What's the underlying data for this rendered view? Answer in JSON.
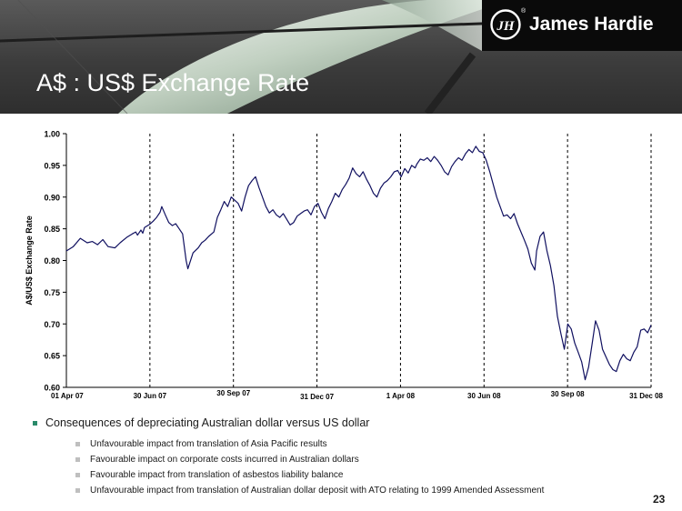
{
  "header": {
    "logo_text": "James Hardie",
    "logo_mark": "JH",
    "logo_registered": "®",
    "title": "A$ : US$ Exchange Rate"
  },
  "chart_data": {
    "type": "line",
    "ylabel": "A$/US$ Exchange Rate",
    "ylim": [
      0.6,
      1.0
    ],
    "yticks": [
      "0.60",
      "0.65",
      "0.70",
      "0.75",
      "0.80",
      "0.85",
      "0.90",
      "0.95",
      "1.00"
    ],
    "date_labels": [
      "01 Apr 07",
      "30 Jun 07",
      "30 Sep 07",
      "31 Dec 07",
      "1 Apr 08",
      "30 Jun 08",
      "30 Sep 08",
      "31 Dec 08"
    ],
    "color": "#101060",
    "series": [
      {
        "x": [
          0,
          8,
          16,
          24,
          30,
          36,
          42,
          48,
          56,
          62,
          70,
          76,
          80,
          82,
          86,
          88,
          90,
          96,
          100,
          104,
          108,
          110,
          114,
          118,
          122,
          126,
          130,
          134,
          138,
          140,
          146,
          152,
          156,
          160,
          164,
          170,
          174,
          178,
          182,
          186,
          190,
          194,
          198,
          202,
          206,
          210,
          214,
          218,
          222,
          226,
          230,
          234,
          238,
          242,
          246,
          250,
          254,
          258,
          262,
          266,
          270,
          274,
          278,
          282,
          286,
          290,
          294,
          298,
          302,
          306,
          310,
          314,
          318,
          322,
          326,
          330,
          334,
          338,
          342,
          346,
          350,
          354,
          358,
          362,
          366,
          370,
          374,
          378,
          382,
          386,
          390,
          394,
          398,
          402,
          404,
          408,
          412,
          416,
          420,
          424,
          428,
          432,
          436,
          440,
          444,
          448,
          452,
          456,
          460,
          464,
          468,
          472,
          476,
          480,
          484,
          488,
          492,
          496,
          500,
          504,
          508,
          512,
          516,
          520,
          524,
          528,
          532,
          536,
          540,
          542,
          546,
          550,
          554,
          558,
          562,
          566,
          570,
          574,
          578,
          582,
          586,
          590,
          594,
          598,
          602,
          606,
          610,
          614,
          618,
          622,
          626,
          630,
          634,
          638,
          642,
          646,
          650,
          654,
          658,
          662,
          666,
          670,
          674
        ],
        "y": [
          0.815,
          0.822,
          0.835,
          0.828,
          0.83,
          0.825,
          0.833,
          0.822,
          0.82,
          0.828,
          0.837,
          0.842,
          0.845,
          0.84,
          0.848,
          0.843,
          0.852,
          0.857,
          0.862,
          0.868,
          0.876,
          0.885,
          0.872,
          0.86,
          0.855,
          0.858,
          0.85,
          0.842,
          0.8,
          0.787,
          0.812,
          0.82,
          0.828,
          0.832,
          0.838,
          0.845,
          0.868,
          0.88,
          0.893,
          0.885,
          0.9,
          0.895,
          0.89,
          0.878,
          0.9,
          0.918,
          0.926,
          0.932,
          0.915,
          0.9,
          0.885,
          0.875,
          0.88,
          0.872,
          0.868,
          0.874,
          0.865,
          0.856,
          0.86,
          0.87,
          0.874,
          0.878,
          0.88,
          0.872,
          0.885,
          0.89,
          0.876,
          0.866,
          0.882,
          0.893,
          0.906,
          0.9,
          0.912,
          0.92,
          0.93,
          0.946,
          0.937,
          0.932,
          0.94,
          0.928,
          0.918,
          0.906,
          0.9,
          0.914,
          0.922,
          0.926,
          0.932,
          0.94,
          0.942,
          0.932,
          0.945,
          0.938,
          0.95,
          0.946,
          0.952,
          0.96,
          0.958,
          0.962,
          0.956,
          0.964,
          0.958,
          0.95,
          0.94,
          0.935,
          0.948,
          0.956,
          0.962,
          0.958,
          0.968,
          0.975,
          0.97,
          0.98,
          0.972,
          0.97,
          0.958,
          0.94,
          0.92,
          0.9,
          0.885,
          0.87,
          0.872,
          0.866,
          0.874,
          0.858,
          0.845,
          0.832,
          0.818,
          0.796,
          0.785,
          0.815,
          0.838,
          0.845,
          0.815,
          0.792,
          0.76,
          0.712,
          0.685,
          0.66,
          0.7,
          0.692,
          0.67,
          0.655,
          0.64,
          0.612,
          0.632,
          0.668,
          0.705,
          0.69,
          0.66,
          0.648,
          0.636,
          0.628,
          0.625,
          0.642,
          0.652,
          0.645,
          0.642,
          0.655,
          0.664,
          0.69,
          0.692,
          0.686,
          0.698
        ]
      }
    ]
  },
  "bullets": {
    "main": "Consequences of depreciating Australian dollar versus US dollar",
    "subs": [
      "Unfavourable impact from translation of Asia Pacific results",
      "Favourable impact on corporate costs incurred in Australian dollars",
      "Favourable impact from translation of asbestos liability balance",
      "Unfavourable impact from translation of Australian dollar deposit with ATO relating to 1999 Amended Assessment"
    ]
  },
  "page_number": "23"
}
